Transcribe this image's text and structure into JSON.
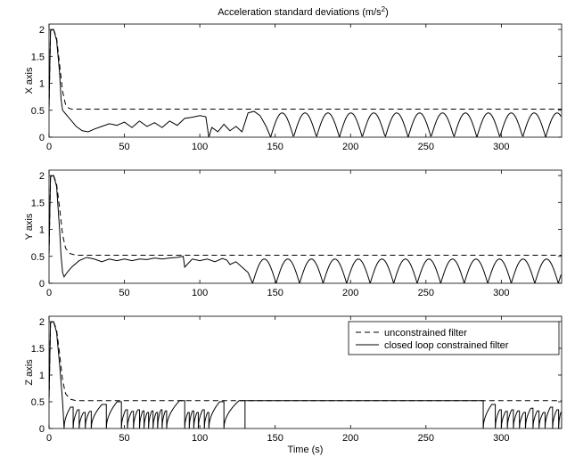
{
  "figure": {
    "title_main": "Acceleration standard deviations (m/s",
    "title_sup": "2",
    "title_close": ")"
  },
  "chart_data": [
    {
      "type": "line",
      "ylabel": "X axis",
      "xlabel": "",
      "xlim": [
        0,
        340
      ],
      "ylim": [
        0,
        2.1
      ],
      "xticks": [
        0,
        50,
        100,
        150,
        200,
        250,
        300
      ],
      "yticks": [
        0,
        0.5,
        1,
        1.5,
        2
      ],
      "grid": false,
      "series": [
        {
          "style": "dashed",
          "x": [
            0,
            1,
            3,
            5,
            7,
            9,
            11,
            13,
            15,
            340
          ],
          "values": [
            0.55,
            1.98,
            2.0,
            1.85,
            1.35,
            0.85,
            0.6,
            0.54,
            0.52,
            0.52
          ]
        },
        {
          "style": "solid",
          "x": [
            0,
            1,
            3,
            5,
            7,
            8,
            9,
            12,
            15,
            18,
            22,
            26,
            30,
            35,
            40,
            45,
            50,
            55,
            60,
            65,
            70,
            75,
            80,
            85,
            90,
            95,
            100,
            104,
            106,
            108,
            112,
            116,
            120,
            124,
            128,
            132,
            136,
            140,
            144,
            147
          ],
          "values": [
            0.55,
            1.98,
            2.0,
            1.8,
            1.2,
            0.7,
            0.5,
            0.4,
            0.3,
            0.2,
            0.12,
            0.1,
            0.15,
            0.2,
            0.25,
            0.22,
            0.28,
            0.18,
            0.3,
            0.2,
            0.27,
            0.18,
            0.3,
            0.22,
            0.35,
            0.37,
            0.4,
            0.38,
            0.0,
            0.18,
            0.1,
            0.24,
            0.12,
            0.2,
            0.1,
            0.45,
            0.48,
            0.4,
            0.2,
            0.0
          ],
          "periodic": {
            "start": 147,
            "end": 340,
            "period": 15.2,
            "amplitude": 0.45
          }
        }
      ]
    },
    {
      "type": "line",
      "ylabel": "Y axis",
      "xlabel": "",
      "xlim": [
        0,
        340
      ],
      "ylim": [
        0,
        2.1
      ],
      "xticks": [
        0,
        50,
        100,
        150,
        200,
        250,
        300
      ],
      "yticks": [
        0,
        0.5,
        1,
        1.5,
        2
      ],
      "grid": false,
      "series": [
        {
          "style": "dashed",
          "x": [
            0,
            1,
            3,
            5,
            7,
            9,
            11,
            14,
            18,
            340
          ],
          "values": [
            0.55,
            1.98,
            2.0,
            1.85,
            1.4,
            0.9,
            0.65,
            0.55,
            0.52,
            0.52
          ]
        },
        {
          "style": "solid",
          "x": [
            0,
            1,
            3,
            5,
            7,
            8,
            9,
            10,
            12,
            15,
            20,
            25,
            30,
            35,
            40,
            45,
            50,
            55,
            60,
            65,
            70,
            75,
            80,
            85,
            89,
            90,
            95,
            100,
            105,
            110,
            115,
            118,
            120,
            124,
            128,
            132,
            135
          ],
          "values": [
            0.55,
            1.98,
            2.0,
            1.8,
            1.0,
            0.5,
            0.2,
            0.12,
            0.2,
            0.3,
            0.42,
            0.48,
            0.45,
            0.4,
            0.45,
            0.42,
            0.45,
            0.42,
            0.45,
            0.44,
            0.47,
            0.45,
            0.47,
            0.48,
            0.5,
            0.3,
            0.45,
            0.42,
            0.45,
            0.4,
            0.46,
            0.43,
            0.35,
            0.4,
            0.3,
            0.2,
            0.0
          ],
          "periodic": {
            "start": 135,
            "end": 340,
            "period": 15.6,
            "amplitude": 0.45
          }
        }
      ]
    },
    {
      "type": "line",
      "ylabel": "Z axis",
      "xlabel": "Time (s)",
      "xlim": [
        0,
        340
      ],
      "ylim": [
        0,
        2.1
      ],
      "xticks": [
        0,
        50,
        100,
        150,
        200,
        250,
        300
      ],
      "yticks": [
        0,
        0.5,
        1,
        1.5,
        2
      ],
      "grid": false,
      "legend": {
        "placement": "top-right",
        "entries": [
          {
            "label": "unconstrained filter",
            "style": "dashed"
          },
          {
            "label": "closed loop constrained filter",
            "style": "solid"
          }
        ]
      },
      "series": [
        {
          "name": "unconstrained filter",
          "style": "dashed",
          "x": [
            0,
            1,
            3,
            5,
            7,
            9,
            11,
            14,
            18,
            340
          ],
          "values": [
            0.55,
            1.98,
            2.0,
            1.85,
            1.4,
            0.9,
            0.65,
            0.55,
            0.52,
            0.52
          ]
        },
        {
          "name": "closed loop constrained filter",
          "style": "solid",
          "x": [
            0,
            1,
            3,
            5,
            7,
            9,
            10
          ],
          "values": [
            0.55,
            1.98,
            2.0,
            1.8,
            1.2,
            0.5,
            0.0
          ],
          "resets": [
            {
              "start": 10,
              "end": 16,
              "peak": 0.4
            },
            {
              "start": 16,
              "end": 20,
              "peak": 0.35
            },
            {
              "start": 20,
              "end": 24,
              "peak": 0.3
            },
            {
              "start": 24,
              "end": 28,
              "peak": 0.32
            },
            {
              "start": 28,
              "end": 38,
              "peak": 0.45
            },
            {
              "start": 38,
              "end": 48,
              "peak": 0.5
            },
            {
              "start": 48,
              "end": 52,
              "peak": 0.35
            },
            {
              "start": 52,
              "end": 56,
              "peak": 0.32
            },
            {
              "start": 56,
              "end": 60,
              "peak": 0.35
            },
            {
              "start": 60,
              "end": 63,
              "peak": 0.33
            },
            {
              "start": 63,
              "end": 66,
              "peak": 0.3
            },
            {
              "start": 66,
              "end": 69,
              "peak": 0.33
            },
            {
              "start": 69,
              "end": 72,
              "peak": 0.3
            },
            {
              "start": 72,
              "end": 75,
              "peak": 0.35
            },
            {
              "start": 75,
              "end": 78,
              "peak": 0.33
            },
            {
              "start": 78,
              "end": 90,
              "peak": 0.52
            },
            {
              "start": 90,
              "end": 93,
              "peak": 0.3
            },
            {
              "start": 93,
              "end": 96,
              "peak": 0.33
            },
            {
              "start": 96,
              "end": 99,
              "peak": 0.3
            },
            {
              "start": 99,
              "end": 103,
              "peak": 0.35
            },
            {
              "start": 103,
              "end": 106,
              "peak": 0.3
            },
            {
              "start": 106,
              "end": 116,
              "peak": 0.5
            },
            {
              "start": 116,
              "end": 130,
              "peak": 0.52
            }
          ],
          "flat": {
            "start": 130,
            "end": 288,
            "value": 0.52
          },
          "tail_resets": [
            {
              "start": 288,
              "end": 296,
              "peak": 0.45
            },
            {
              "start": 296,
              "end": 300,
              "peak": 0.35
            },
            {
              "start": 300,
              "end": 304,
              "peak": 0.32
            },
            {
              "start": 304,
              "end": 308,
              "peak": 0.35
            },
            {
              "start": 308,
              "end": 312,
              "peak": 0.33
            },
            {
              "start": 312,
              "end": 316,
              "peak": 0.3
            },
            {
              "start": 316,
              "end": 321,
              "peak": 0.38
            },
            {
              "start": 321,
              "end": 325,
              "peak": 0.33
            },
            {
              "start": 325,
              "end": 329,
              "peak": 0.3
            },
            {
              "start": 329,
              "end": 334,
              "peak": 0.4
            },
            {
              "start": 334,
              "end": 338,
              "peak": 0.35
            },
            {
              "start": 338,
              "end": 340,
              "peak": 0.3
            }
          ]
        }
      ]
    }
  ]
}
